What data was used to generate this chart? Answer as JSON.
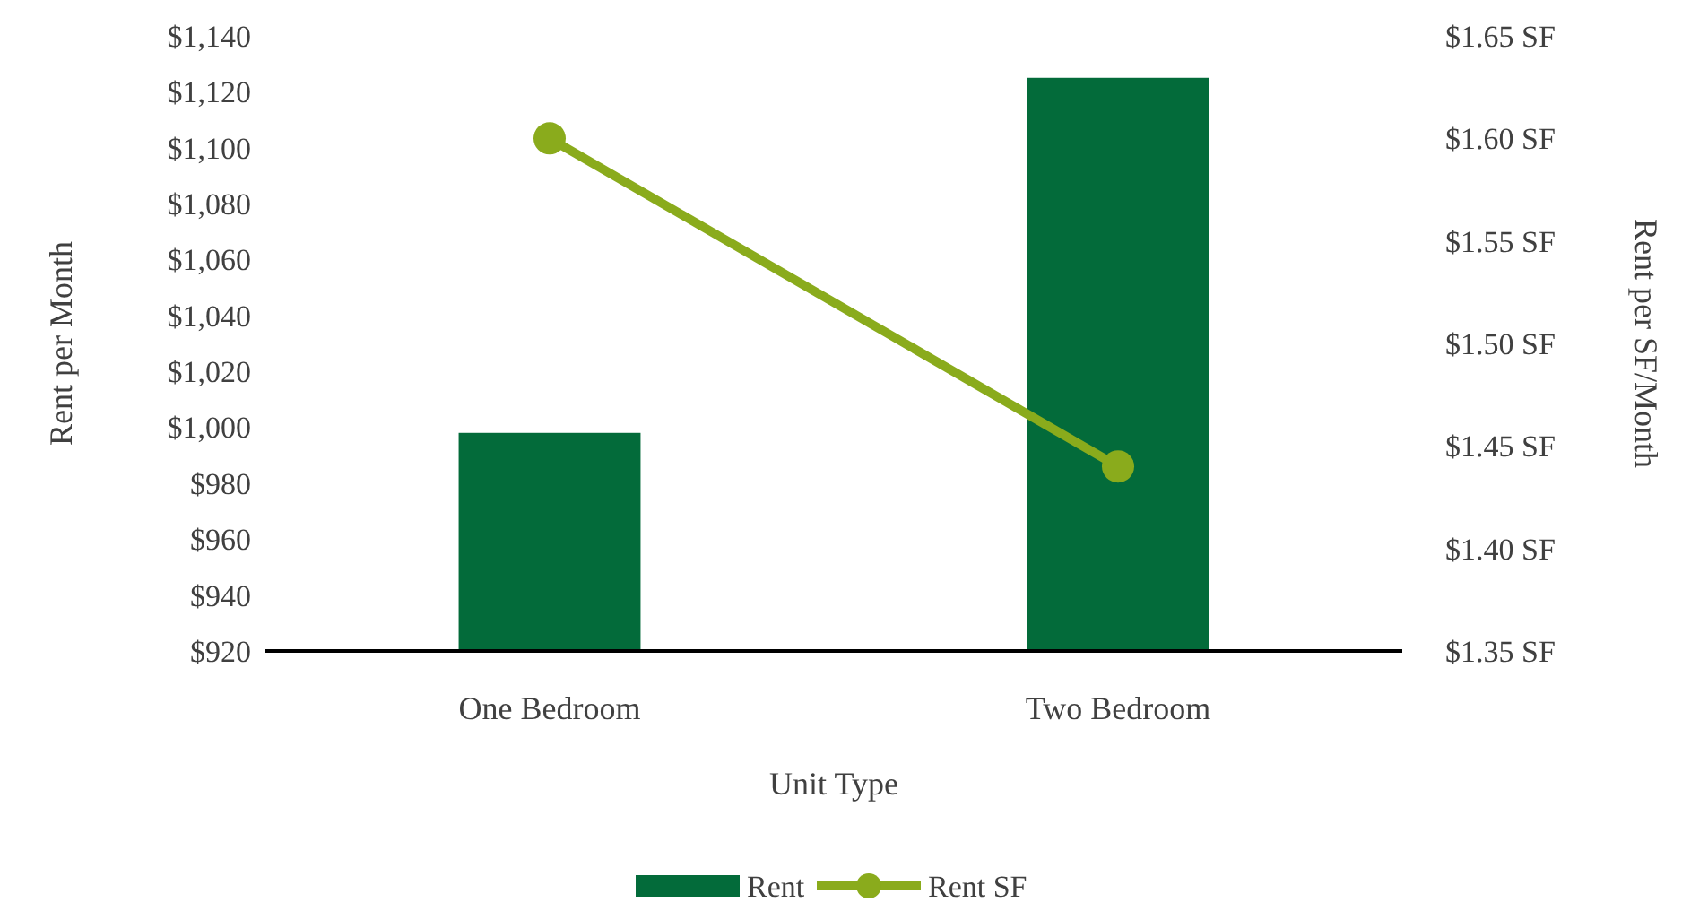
{
  "chart_data": {
    "type": "bar",
    "xlabel": "Unit Type",
    "ylabel": "Rent per Month",
    "y2label": "Rent per SF/Month",
    "categories": [
      "One Bedroom",
      "Two Bedroom"
    ],
    "series": [
      {
        "name": "Rent",
        "color": "#036b3a",
        "values": [
          998,
          1125
        ]
      },
      {
        "name": "Rent SF",
        "type": "line",
        "axis": "y2",
        "color": "#8aab1c",
        "values": [
          1.6,
          1.44
        ],
        "marker": "circle"
      }
    ],
    "ylim": [
      920,
      1140
    ],
    "yticks": [
      {
        "value": 920,
        "label": "$920"
      },
      {
        "value": 940,
        "label": "$940"
      },
      {
        "value": 960,
        "label": "$960"
      },
      {
        "value": 980,
        "label": "$980"
      },
      {
        "value": 1000,
        "label": "$1,000"
      },
      {
        "value": 1020,
        "label": "$1,020"
      },
      {
        "value": 1040,
        "label": "$1,040"
      },
      {
        "value": 1060,
        "label": "$1,060"
      },
      {
        "value": 1080,
        "label": "$1,080"
      },
      {
        "value": 1100,
        "label": "$1,100"
      },
      {
        "value": 1120,
        "label": "$1,120"
      },
      {
        "value": 1140,
        "label": "$1,140"
      }
    ],
    "y2lim": [
      1.35,
      1.65
    ],
    "y2ticks": [
      {
        "value": 1.35,
        "label": "$1.35 SF"
      },
      {
        "value": 1.4,
        "label": "$1.40 SF"
      },
      {
        "value": 1.45,
        "label": "$1.45 SF"
      },
      {
        "value": 1.5,
        "label": "$1.50 SF"
      },
      {
        "value": 1.55,
        "label": "$1.55 SF"
      },
      {
        "value": 1.6,
        "label": "$1.60 SF"
      },
      {
        "value": 1.65,
        "label": "$1.65 SF"
      }
    ],
    "grid": false,
    "legend": "bottom"
  }
}
